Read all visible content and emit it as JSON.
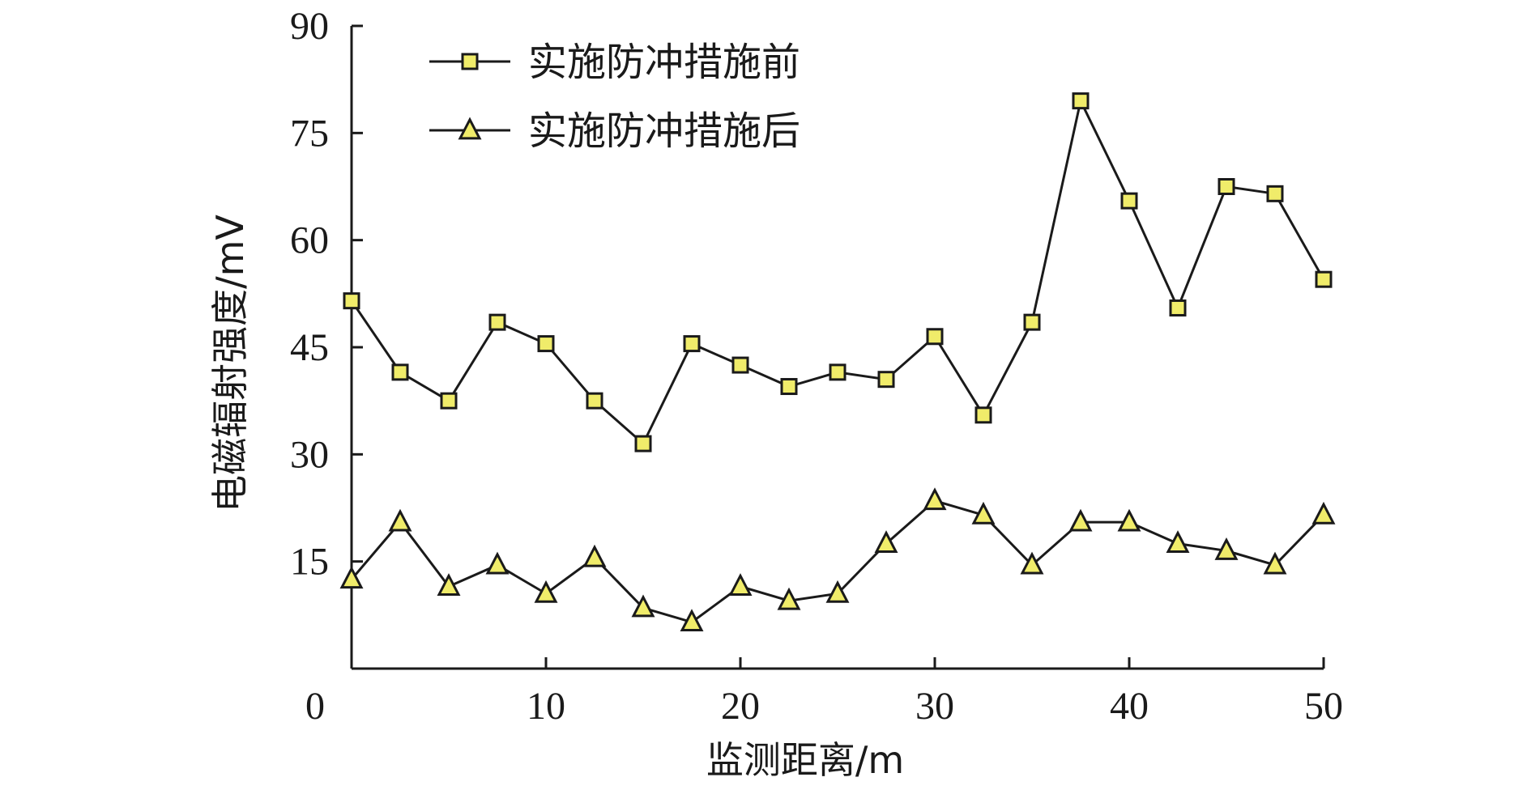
{
  "chart_data": {
    "type": "line",
    "xlabel": "监测距离/m",
    "ylabel": "电磁辐射强度/mV",
    "xlim": [
      0,
      50
    ],
    "ylim": [
      0,
      90
    ],
    "x_ticks": [
      "0",
      "10",
      "20",
      "30",
      "40",
      "50"
    ],
    "y_ticks": [
      "15",
      "30",
      "45",
      "60",
      "75",
      "90"
    ],
    "x_tick_values": [
      0,
      10,
      20,
      30,
      40,
      50
    ],
    "y_tick_values": [
      15,
      30,
      45,
      60,
      75,
      90
    ],
    "grid": false,
    "legend_position": "top-left",
    "marker_fill_color": "#f0ec6a",
    "line_color": "#1a1a1a",
    "series": [
      {
        "name": "实施防冲措施前",
        "marker": "square",
        "x": [
          0,
          2.5,
          5,
          7.5,
          10,
          12.5,
          15,
          17.5,
          20,
          22.5,
          25,
          27.5,
          30,
          32.5,
          35,
          37.5,
          40,
          42.5,
          45,
          47.5,
          50
        ],
        "values": [
          51.5,
          41.5,
          37.5,
          48.5,
          45.5,
          37.5,
          31.5,
          45.5,
          42.5,
          39.5,
          41.5,
          40.5,
          46.5,
          35.5,
          48.5,
          79.5,
          65.5,
          50.5,
          67.5,
          66.5,
          54.5
        ]
      },
      {
        "name": "实施防冲措施后",
        "marker": "triangle",
        "x": [
          0,
          2.5,
          5,
          7.5,
          10,
          12.5,
          15,
          17.5,
          20,
          22.5,
          25,
          27.5,
          30,
          32.5,
          35,
          37.5,
          40,
          42.5,
          45,
          47.5,
          50
        ],
        "values": [
          12.5,
          20.5,
          11.5,
          14.5,
          10.5,
          15.5,
          8.5,
          6.5,
          11.5,
          9.5,
          10.5,
          17.5,
          23.5,
          21.5,
          14.5,
          20.5,
          20.5,
          17.5,
          16.5,
          14.5,
          21.5
        ]
      }
    ]
  }
}
